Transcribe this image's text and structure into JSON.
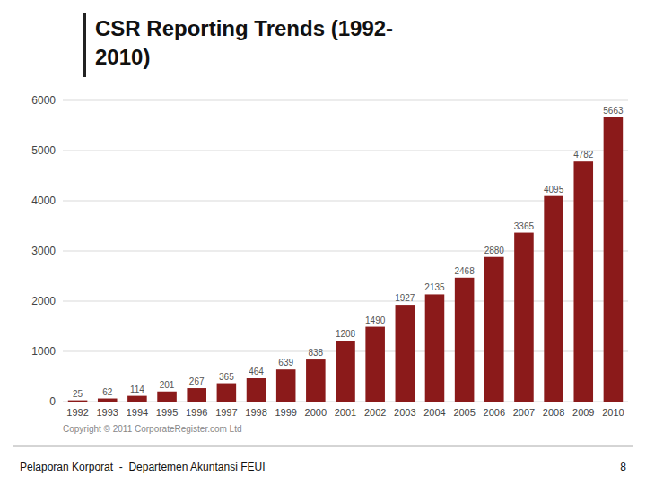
{
  "chart_data": {
    "type": "bar",
    "title": [
      "CSR Reporting Trends (1992-",
      "2010)"
    ],
    "categories": [
      "1992",
      "1993",
      "1994",
      "1995",
      "1996",
      "1997",
      "1998",
      "1999",
      "2000",
      "2001",
      "2002",
      "2003",
      "2004",
      "2005",
      "2006",
      "2007",
      "2008",
      "2009",
      "2010"
    ],
    "values": [
      25,
      62,
      114,
      201,
      267,
      365,
      464,
      639,
      838,
      1208,
      1490,
      1927,
      2135,
      2468,
      2880,
      3365,
      4095,
      4782,
      5663
    ],
    "color": "#8B1A1A",
    "ylim": [
      0,
      6000
    ],
    "yticks": [
      0,
      1000,
      2000,
      3000,
      4000,
      5000,
      6000
    ],
    "grid": true,
    "data_labels": true,
    "annotations": [
      "Copyright © 2011 CorporateRegister.com Ltd",
      "Pelaporan Korporat  -  Departemen Akuntansi FEUI",
      "8"
    ]
  }
}
